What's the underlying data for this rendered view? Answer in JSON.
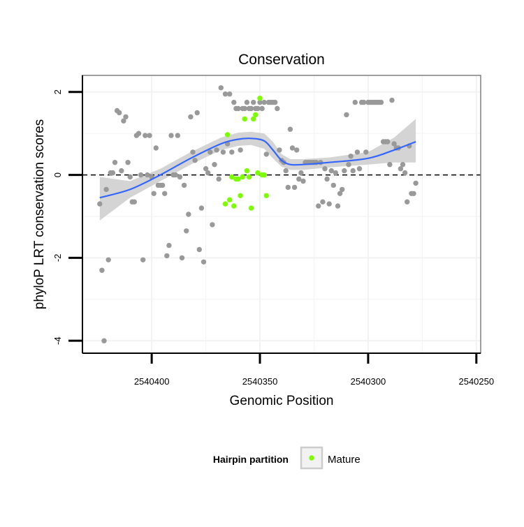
{
  "chart_data": {
    "type": "scatter",
    "title": "Conservation",
    "xlabel": "Genomic Position",
    "ylabel": "phyloP LRT conservation scores",
    "x_reversed": true,
    "xlim": [
      2540432,
      2540248
    ],
    "ylim": [
      -4.3,
      2.4
    ],
    "x_ticks": [
      2540400,
      2540350,
      2540300,
      2540250
    ],
    "x_tick_labels": [
      "2540400",
      "2540350",
      "2540300",
      "2540250"
    ],
    "y_ticks": [
      -4,
      -2,
      0,
      2
    ],
    "y_tick_labels": [
      "-4",
      "-2",
      "0",
      "2"
    ],
    "reference_line": {
      "y": 0,
      "style": "dashed",
      "color": "#000000"
    },
    "grid": true,
    "legend": {
      "title": "Hairpin partition",
      "position": "bottom",
      "entries": [
        "Mature"
      ]
    },
    "colors": {
      "other": "#999999",
      "mature": "#7cfc00",
      "smooth": "#3366ff",
      "band": "#cccccc",
      "panel_border": "#7f7f7f",
      "grid": "#f2f2f2"
    },
    "series": [
      {
        "group": "other",
        "points": [
          [
            2540424,
            -0.7
          ],
          [
            2540423,
            -2.3
          ],
          [
            2540422,
            -4.0
          ],
          [
            2540421,
            -0.35
          ],
          [
            2540420,
            -2.05
          ],
          [
            2540419,
            0.05
          ],
          [
            2540418,
            0.05
          ],
          [
            2540417,
            0.3
          ],
          [
            2540416,
            1.55
          ],
          [
            2540415,
            1.5
          ],
          [
            2540414,
            0.1
          ],
          [
            2540413,
            1.3
          ],
          [
            2540412,
            1.4
          ],
          [
            2540411,
            0.3
          ],
          [
            2540410,
            -0.05
          ],
          [
            2540409,
            -0.65
          ],
          [
            2540408,
            -0.65
          ],
          [
            2540407,
            0.95
          ],
          [
            2540406,
            1.0
          ],
          [
            2540405,
            0.0
          ],
          [
            2540404,
            -2.05
          ],
          [
            2540403,
            0.95
          ],
          [
            2540402,
            0.0
          ],
          [
            2540401,
            0.95
          ],
          [
            2540400,
            -0.05
          ],
          [
            2540399,
            -0.45
          ],
          [
            2540398,
            0.65
          ],
          [
            2540397,
            -0.25
          ],
          [
            2540396,
            -0.25
          ],
          [
            2540395,
            -0.25
          ],
          [
            2540394,
            -0.45
          ],
          [
            2540393,
            -1.95
          ],
          [
            2540392,
            -1.7
          ],
          [
            2540391,
            0.95
          ],
          [
            2540390,
            0.0
          ],
          [
            2540389,
            0.0
          ],
          [
            2540388,
            0.95
          ],
          [
            2540387,
            -0.05
          ],
          [
            2540386,
            -2.0
          ],
          [
            2540385,
            -0.25
          ],
          [
            2540384,
            -1.35
          ],
          [
            2540383,
            -0.95
          ],
          [
            2540382,
            1.4
          ],
          [
            2540381,
            0.55
          ],
          [
            2540380,
            0.35
          ],
          [
            2540379,
            1.5
          ],
          [
            2540378,
            -1.8
          ],
          [
            2540377,
            -0.8
          ],
          [
            2540376,
            -2.1
          ],
          [
            2540375,
            0.15
          ],
          [
            2540374,
            0.05
          ],
          [
            2540373,
            0.55
          ],
          [
            2540372,
            -1.2
          ],
          [
            2540371,
            0.25
          ],
          [
            2540370,
            0.6
          ],
          [
            2540369,
            -0.1
          ],
          [
            2540368,
            2.1
          ],
          [
            2540367,
            0.55
          ],
          [
            2540366,
            1.95
          ],
          [
            2540365,
            0.75
          ],
          [
            2540364,
            1.95
          ],
          [
            2540363,
            0.55
          ],
          [
            2540362,
            1.75
          ],
          [
            2540361,
            1.6
          ],
          [
            2540360,
            1.6
          ],
          [
            2540359,
            0.6
          ],
          [
            2540358,
            1.6
          ],
          [
            2540357,
            1.6
          ],
          [
            2540356,
            1.75
          ],
          [
            2540355,
            1.6
          ],
          [
            2540354,
            1.6
          ],
          [
            2540353,
            1.75
          ],
          [
            2540352,
            1.6
          ],
          [
            2540351,
            1.6
          ],
          [
            2540350,
            1.75
          ],
          [
            2540349,
            1.6
          ],
          [
            2540348,
            1.75
          ],
          [
            2540347,
            0.5
          ],
          [
            2540346,
            1.75
          ],
          [
            2540345,
            1.75
          ],
          [
            2540344,
            1.75
          ],
          [
            2540343,
            1.75
          ],
          [
            2540342,
            1.6
          ],
          [
            2540341,
            0.6
          ],
          [
            2540340,
            0.35
          ],
          [
            2540339,
            0.3
          ],
          [
            2540338,
            0.1
          ],
          [
            2540337,
            -0.3
          ],
          [
            2540336,
            1.1
          ],
          [
            2540335,
            0.65
          ],
          [
            2540334,
            -0.3
          ],
          [
            2540333,
            0.6
          ],
          [
            2540332,
            -0.1
          ],
          [
            2540331,
            0.05
          ],
          [
            2540330,
            -0.15
          ],
          [
            2540329,
            0.3
          ],
          [
            2540328,
            0.3
          ],
          [
            2540327,
            0.3
          ],
          [
            2540326,
            0.3
          ],
          [
            2540325,
            0.3
          ],
          [
            2540324,
            0.3
          ],
          [
            2540323,
            -0.75
          ],
          [
            2540322,
            0.3
          ],
          [
            2540321,
            -0.65
          ],
          [
            2540320,
            0.15
          ],
          [
            2540319,
            -0.1
          ],
          [
            2540318,
            -0.7
          ],
          [
            2540317,
            0.1
          ],
          [
            2540316,
            -0.25
          ],
          [
            2540315,
            0.05
          ],
          [
            2540314,
            -0.75
          ],
          [
            2540313,
            -0.45
          ],
          [
            2540312,
            -0.35
          ],
          [
            2540311,
            0.1
          ],
          [
            2540310,
            1.45
          ],
          [
            2540309,
            0.25
          ],
          [
            2540308,
            0.45
          ],
          [
            2540307,
            0.1
          ],
          [
            2540306,
            1.75
          ],
          [
            2540305,
            0.55
          ],
          [
            2540304,
            0.15
          ],
          [
            2540303,
            1.75
          ],
          [
            2540302,
            1.75
          ],
          [
            2540301,
            0.55
          ],
          [
            2540300,
            1.75
          ],
          [
            2540299,
            1.75
          ],
          [
            2540298,
            1.75
          ],
          [
            2540297,
            1.75
          ],
          [
            2540296,
            1.75
          ],
          [
            2540295,
            1.75
          ],
          [
            2540294,
            1.75
          ],
          [
            2540293,
            0.8
          ],
          [
            2540292,
            0.8
          ],
          [
            2540291,
            0.8
          ],
          [
            2540290,
            0.25
          ],
          [
            2540289,
            1.8
          ],
          [
            2540288,
            0.75
          ],
          [
            2540287,
            0.65
          ],
          [
            2540286,
            0.65
          ],
          [
            2540285,
            0.15
          ],
          [
            2540284,
            0.25
          ],
          [
            2540283,
            0.05
          ],
          [
            2540282,
            -0.65
          ],
          [
            2540281,
            0.7
          ],
          [
            2540280,
            -0.45
          ],
          [
            2540279,
            -0.45
          ],
          [
            2540278,
            -0.2
          ]
        ]
      },
      {
        "group": "mature",
        "name": "Mature",
        "points": [
          [
            2540366,
            -0.7
          ],
          [
            2540365,
            0.97
          ],
          [
            2540364,
            -0.6
          ],
          [
            2540363,
            -0.05
          ],
          [
            2540362,
            -0.75
          ],
          [
            2540361,
            -0.1
          ],
          [
            2540360,
            -0.1
          ],
          [
            2540359,
            -0.5
          ],
          [
            2540358,
            -0.05
          ],
          [
            2540357,
            1.35
          ],
          [
            2540356,
            0.1
          ],
          [
            2540355,
            -0.05
          ],
          [
            2540354,
            -0.8
          ],
          [
            2540353,
            1.35
          ],
          [
            2540352,
            1.45
          ],
          [
            2540351,
            0.05
          ],
          [
            2540350,
            1.85
          ],
          [
            2540349,
            0.0
          ],
          [
            2540348,
            0.0
          ],
          [
            2540347,
            -0.5
          ]
        ]
      }
    ],
    "smooth": {
      "x": [
        2540424,
        2540410,
        2540396,
        2540382,
        2540368,
        2540360,
        2540354,
        2540348,
        2540344,
        2540340,
        2540336,
        2540330,
        2540318,
        2540300,
        2540288,
        2540278
      ],
      "y": [
        -0.55,
        -0.35,
        0.0,
        0.4,
        0.75,
        0.86,
        0.88,
        0.82,
        0.6,
        0.35,
        0.25,
        0.25,
        0.3,
        0.4,
        0.6,
        0.8
      ],
      "lower": [
        -1.1,
        -0.55,
        -0.15,
        0.25,
        0.6,
        0.7,
        0.72,
        0.63,
        0.4,
        0.2,
        0.12,
        0.12,
        0.18,
        0.25,
        0.3,
        0.3
      ],
      "upper": [
        -0.05,
        -0.15,
        0.15,
        0.55,
        0.9,
        1.02,
        1.04,
        1.0,
        0.8,
        0.5,
        0.38,
        0.38,
        0.42,
        0.55,
        0.9,
        1.35
      ]
    }
  }
}
